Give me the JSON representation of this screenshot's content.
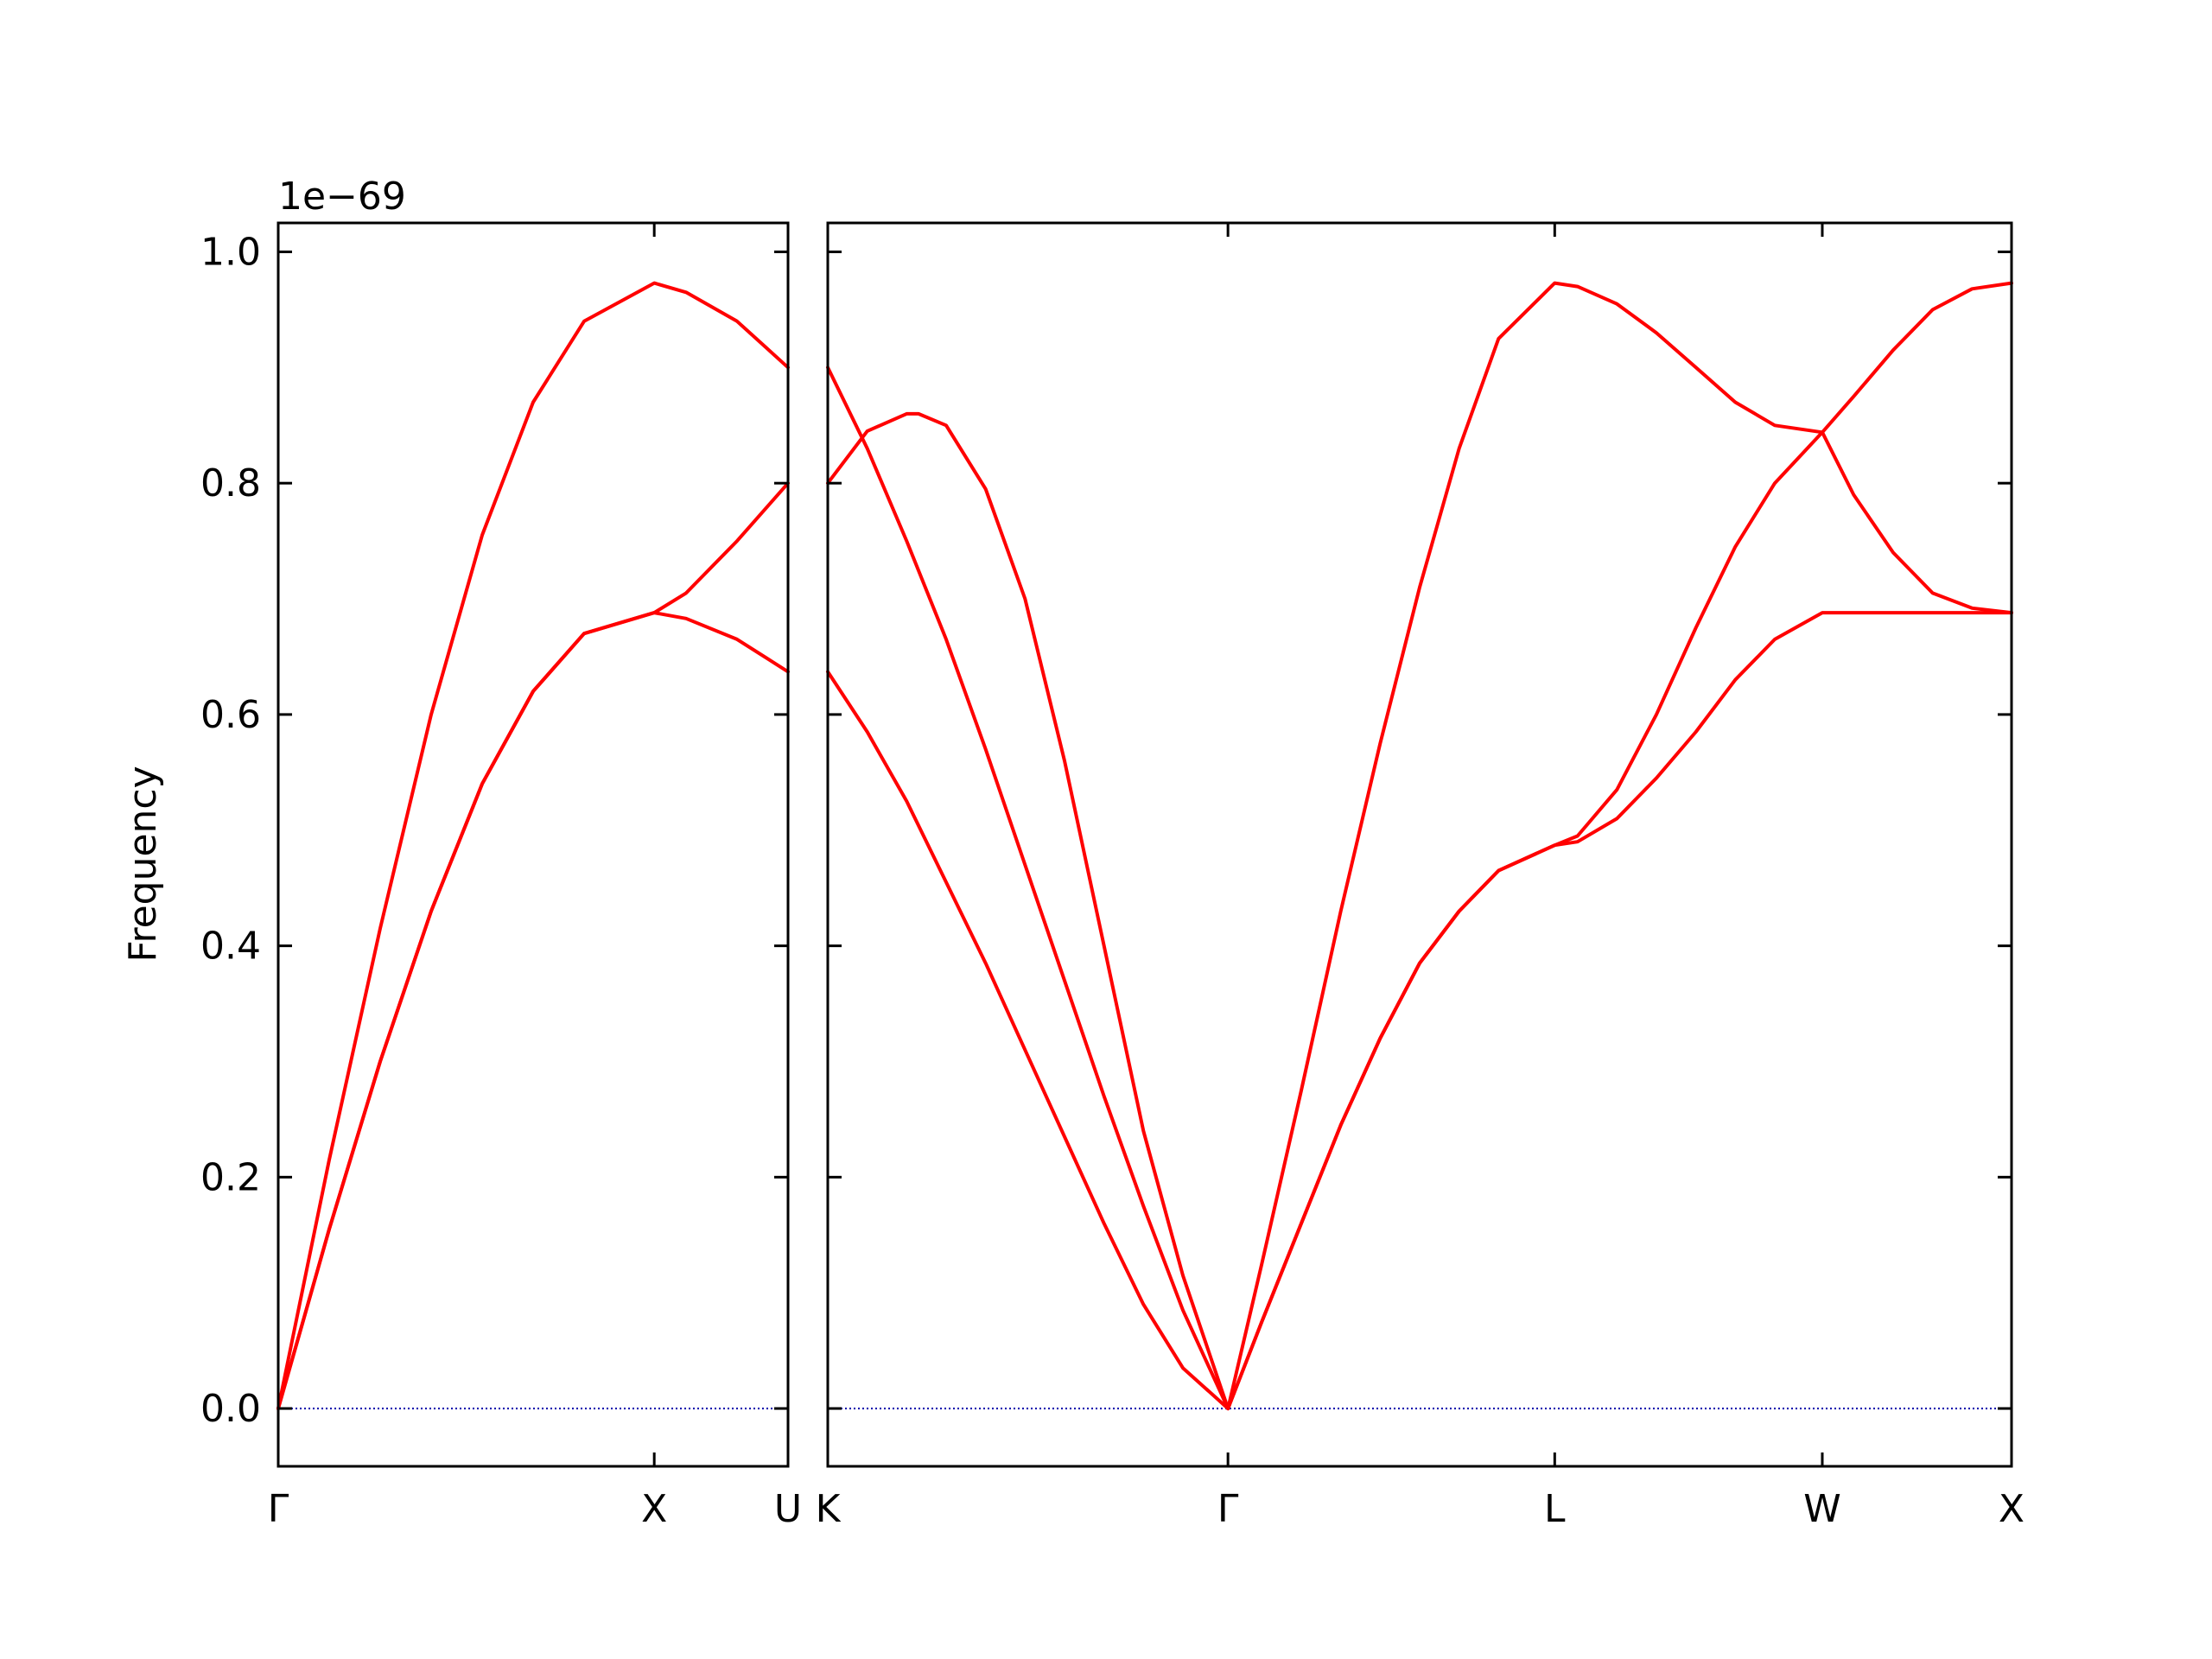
{
  "chart_data": {
    "type": "line",
    "ylabel": "Frequency",
    "y_offset_text": "1e−69",
    "ylim": [
      -0.05,
      1.025
    ],
    "yticks": [
      0.0,
      0.2,
      0.4,
      0.6,
      0.8,
      1.0
    ],
    "ytick_labels": [
      "0.0",
      "0.2",
      "0.4",
      "0.6",
      "0.8",
      "1.0"
    ],
    "line_color": "#ff0000",
    "zero_line_color": "#0000aa",
    "panels": [
      {
        "xlim": [
          0,
          1.0
        ],
        "ticks": [
          {
            "pos": 0.0,
            "label": "Γ"
          },
          {
            "pos": 0.7376,
            "label": "X"
          },
          {
            "pos": 1.0,
            "label": "U"
          }
        ],
        "series": [
          {
            "x": [
              0,
              0.1,
              0.2,
              0.3,
              0.4,
              0.5,
              0.6,
              0.7376,
              0.8,
              0.9,
              1.0
            ],
            "y": [
              0,
              0.215,
              0.415,
              0.6,
              0.755,
              0.87,
              0.94,
              0.973,
              0.965,
              0.94,
              0.9
            ]
          },
          {
            "x": [
              0,
              0.1,
              0.2,
              0.3,
              0.4,
              0.5,
              0.6,
              0.7376,
              0.8,
              0.9,
              1.0
            ],
            "y": [
              0,
              0.155,
              0.3,
              0.43,
              0.54,
              0.62,
              0.67,
              0.688,
              0.705,
              0.75,
              0.8
            ]
          },
          {
            "x": [
              0,
              0.1,
              0.2,
              0.3,
              0.4,
              0.5,
              0.6,
              0.7376,
              0.8,
              0.9,
              1.0
            ],
            "y": [
              0,
              0.155,
              0.3,
              0.43,
              0.54,
              0.62,
              0.67,
              0.688,
              0.683,
              0.665,
              0.637
            ]
          }
        ]
      },
      {
        "xlim": [
          0,
          3.0
        ],
        "ticks": [
          {
            "pos": 0.0,
            "label": "K"
          },
          {
            "pos": 1.0142,
            "label": "Γ"
          },
          {
            "pos": 1.8423,
            "label": "L"
          },
          {
            "pos": 2.5204,
            "label": "W"
          },
          {
            "pos": 3.0,
            "label": "X"
          }
        ],
        "series": [
          {
            "x": [
              0,
              0.1,
              0.2,
              0.3,
              0.4,
              0.5,
              0.6,
              0.7,
              0.8,
              0.9,
              1.0142
            ],
            "y": [
              0.9,
              0.83,
              0.75,
              0.665,
              0.57,
              0.47,
              0.37,
              0.27,
              0.175,
              0.085,
              0
            ]
          },
          {
            "x": [
              0,
              0.1,
              0.2,
              0.23,
              0.3,
              0.4,
              0.5,
              0.6,
              0.7,
              0.8,
              0.9,
              1.0142
            ],
            "y": [
              0.8,
              0.845,
              0.86,
              0.86,
              0.85,
              0.795,
              0.7,
              0.56,
              0.4,
              0.24,
              0.115,
              0
            ]
          },
          {
            "x": [
              0,
              0.1,
              0.2,
              0.3,
              0.4,
              0.5,
              0.6,
              0.7,
              0.8,
              0.9,
              1.0142
            ],
            "y": [
              0.637,
              0.585,
              0.525,
              0.455,
              0.385,
              0.31,
              0.235,
              0.16,
              0.09,
              0.035,
              0
            ]
          },
          {
            "x": [
              1.0142,
              1.1,
              1.2,
              1.3,
              1.4,
              1.5,
              1.6,
              1.7,
              1.8423,
              1.9,
              2.0,
              2.1,
              2.2,
              2.3,
              2.4,
              2.5204,
              2.6,
              2.7,
              2.8,
              2.9,
              3.0
            ],
            "y": [
              0,
              0.125,
              0.275,
              0.43,
              0.575,
              0.71,
              0.83,
              0.925,
              0.973,
              0.97,
              0.955,
              0.93,
              0.9,
              0.87,
              0.85,
              0.844,
              0.875,
              0.915,
              0.95,
              0.968,
              0.973
            ]
          },
          {
            "x": [
              1.0142,
              1.1,
              1.2,
              1.3,
              1.4,
              1.5,
              1.6,
              1.7,
              1.8423,
              1.9,
              2.0,
              2.1,
              2.2,
              2.3,
              2.4,
              2.5204,
              2.6,
              2.7,
              2.8,
              2.9,
              3.0
            ],
            "y": [
              0,
              0.075,
              0.16,
              0.245,
              0.32,
              0.385,
              0.43,
              0.465,
              0.487,
              0.495,
              0.535,
              0.6,
              0.675,
              0.745,
              0.8,
              0.844,
              0.79,
              0.74,
              0.705,
              0.692,
              0.688
            ]
          },
          {
            "x": [
              1.0142,
              1.1,
              1.2,
              1.3,
              1.4,
              1.5,
              1.6,
              1.7,
              1.8423,
              1.9,
              2.0,
              2.1,
              2.2,
              2.3,
              2.4,
              2.5204,
              2.6,
              2.7,
              2.8,
              2.9,
              3.0
            ],
            "y": [
              0,
              0.075,
              0.16,
              0.245,
              0.32,
              0.385,
              0.43,
              0.465,
              0.487,
              0.49,
              0.51,
              0.545,
              0.585,
              0.63,
              0.665,
              0.688,
              0.688,
              0.688,
              0.688,
              0.688,
              0.688
            ]
          }
        ]
      }
    ]
  }
}
